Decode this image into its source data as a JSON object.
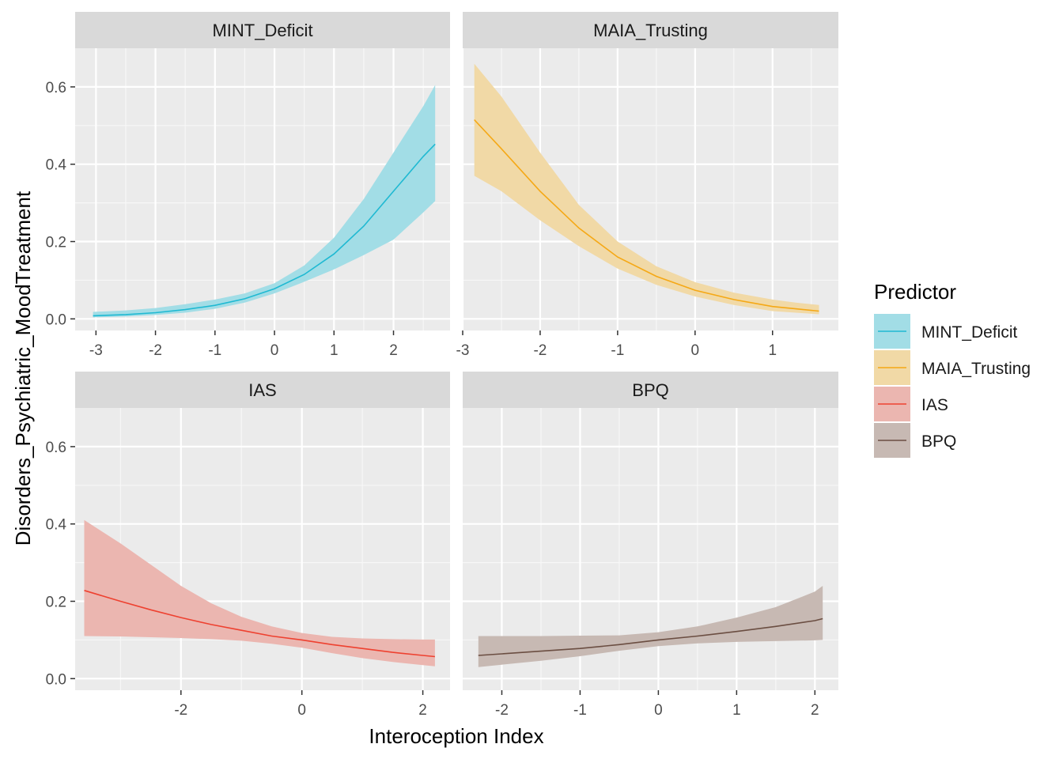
{
  "chart_data": {
    "type": "line",
    "facet_layout": "2x2",
    "shared_y_axis": true,
    "xlabel": "Interoception Index",
    "ylabel": "Disorders_Psychiatric_MoodTreatment",
    "ylim": [
      -0.03,
      0.7
    ],
    "yticks": [
      0.0,
      0.2,
      0.4,
      0.6
    ],
    "ytick_labels": [
      "0.0",
      "0.2",
      "0.4",
      "0.6"
    ],
    "grid": true,
    "legend": {
      "title": "Predictor",
      "position": "right",
      "entries": [
        "MINT_Deficit",
        "MAIA_Trusting",
        "IAS",
        "BPQ"
      ]
    },
    "panels": [
      {
        "name": "MINT_Deficit",
        "color": "#1FB9D2",
        "fill": "#A2DDE6",
        "xlim": [
          -3.35,
          2.95
        ],
        "xticks": [
          -3,
          -2,
          -1,
          0,
          1,
          2
        ],
        "xtick_labels": [
          "-3",
          "-2",
          "-1",
          "0",
          "1",
          "2"
        ],
        "show_xticks": true,
        "x": [
          -3.05,
          -2.5,
          -2.0,
          -1.5,
          -1.0,
          -0.5,
          0.0,
          0.5,
          1.0,
          1.5,
          2.0,
          2.5,
          2.7
        ],
        "y": [
          0.008,
          0.011,
          0.016,
          0.024,
          0.035,
          0.052,
          0.078,
          0.115,
          0.168,
          0.24,
          0.33,
          0.42,
          0.452
        ],
        "lower": [
          0.004,
          0.006,
          0.01,
          0.016,
          0.026,
          0.042,
          0.066,
          0.096,
          0.128,
          0.165,
          0.205,
          0.275,
          0.305
        ],
        "upper": [
          0.018,
          0.022,
          0.028,
          0.038,
          0.05,
          0.066,
          0.092,
          0.138,
          0.21,
          0.31,
          0.43,
          0.55,
          0.605
        ]
      },
      {
        "name": "MAIA_Trusting",
        "color": "#F5A815",
        "fill": "#F1D9A6",
        "xlim": [
          -3.0,
          1.85
        ],
        "xticks": [
          -3,
          -2,
          -1,
          0,
          1
        ],
        "xtick_labels": [
          "-3",
          "-2",
          "-1",
          "0",
          "1"
        ],
        "show_xticks": true,
        "x": [
          -2.85,
          -2.5,
          -2.0,
          -1.5,
          -1.0,
          -0.5,
          0.0,
          0.5,
          1.0,
          1.3,
          1.6
        ],
        "y": [
          0.515,
          0.44,
          0.33,
          0.235,
          0.16,
          0.11,
          0.074,
          0.05,
          0.032,
          0.026,
          0.02
        ],
        "lower": [
          0.37,
          0.33,
          0.255,
          0.188,
          0.13,
          0.088,
          0.058,
          0.036,
          0.02,
          0.016,
          0.012
        ],
        "upper": [
          0.66,
          0.575,
          0.43,
          0.295,
          0.2,
          0.136,
          0.095,
          0.068,
          0.05,
          0.042,
          0.036
        ]
      },
      {
        "name": "IAS",
        "color": "#EE4130",
        "fill": "#EBB6B0",
        "xlim": [
          -3.75,
          2.45
        ],
        "xticks": [
          -2,
          0,
          2
        ],
        "xtick_labels": [
          "-2",
          "0",
          "2"
        ],
        "show_xticks": true,
        "x": [
          -3.6,
          -3.0,
          -2.5,
          -2.0,
          -1.5,
          -1.0,
          -0.5,
          0.0,
          0.5,
          1.0,
          1.5,
          2.0,
          2.2
        ],
        "y": [
          0.228,
          0.2,
          0.178,
          0.158,
          0.14,
          0.125,
          0.11,
          0.1,
          0.088,
          0.078,
          0.068,
          0.06,
          0.057
        ],
        "lower": [
          0.11,
          0.109,
          0.107,
          0.105,
          0.102,
          0.098,
          0.09,
          0.08,
          0.066,
          0.053,
          0.043,
          0.035,
          0.032
        ],
        "upper": [
          0.41,
          0.35,
          0.295,
          0.24,
          0.195,
          0.16,
          0.135,
          0.118,
          0.108,
          0.104,
          0.102,
          0.101,
          0.101
        ]
      },
      {
        "name": "BPQ",
        "color": "#6B4E42",
        "fill": "#C7B9B3",
        "xlim": [
          -2.5,
          2.3
        ],
        "xticks": [
          -2,
          -1,
          0,
          1,
          2
        ],
        "xtick_labels": [
          "-2",
          "-1",
          "0",
          "1",
          "2"
        ],
        "show_xticks": true,
        "x": [
          -2.3,
          -2.0,
          -1.5,
          -1.0,
          -0.5,
          0.0,
          0.5,
          1.0,
          1.5,
          2.0,
          2.1
        ],
        "y": [
          0.06,
          0.064,
          0.071,
          0.078,
          0.088,
          0.1,
          0.11,
          0.122,
          0.135,
          0.15,
          0.155
        ],
        "lower": [
          0.03,
          0.036,
          0.046,
          0.058,
          0.072,
          0.084,
          0.091,
          0.095,
          0.097,
          0.099,
          0.1
        ],
        "upper": [
          0.11,
          0.11,
          0.11,
          0.111,
          0.112,
          0.12,
          0.135,
          0.158,
          0.185,
          0.225,
          0.24
        ]
      }
    ]
  }
}
